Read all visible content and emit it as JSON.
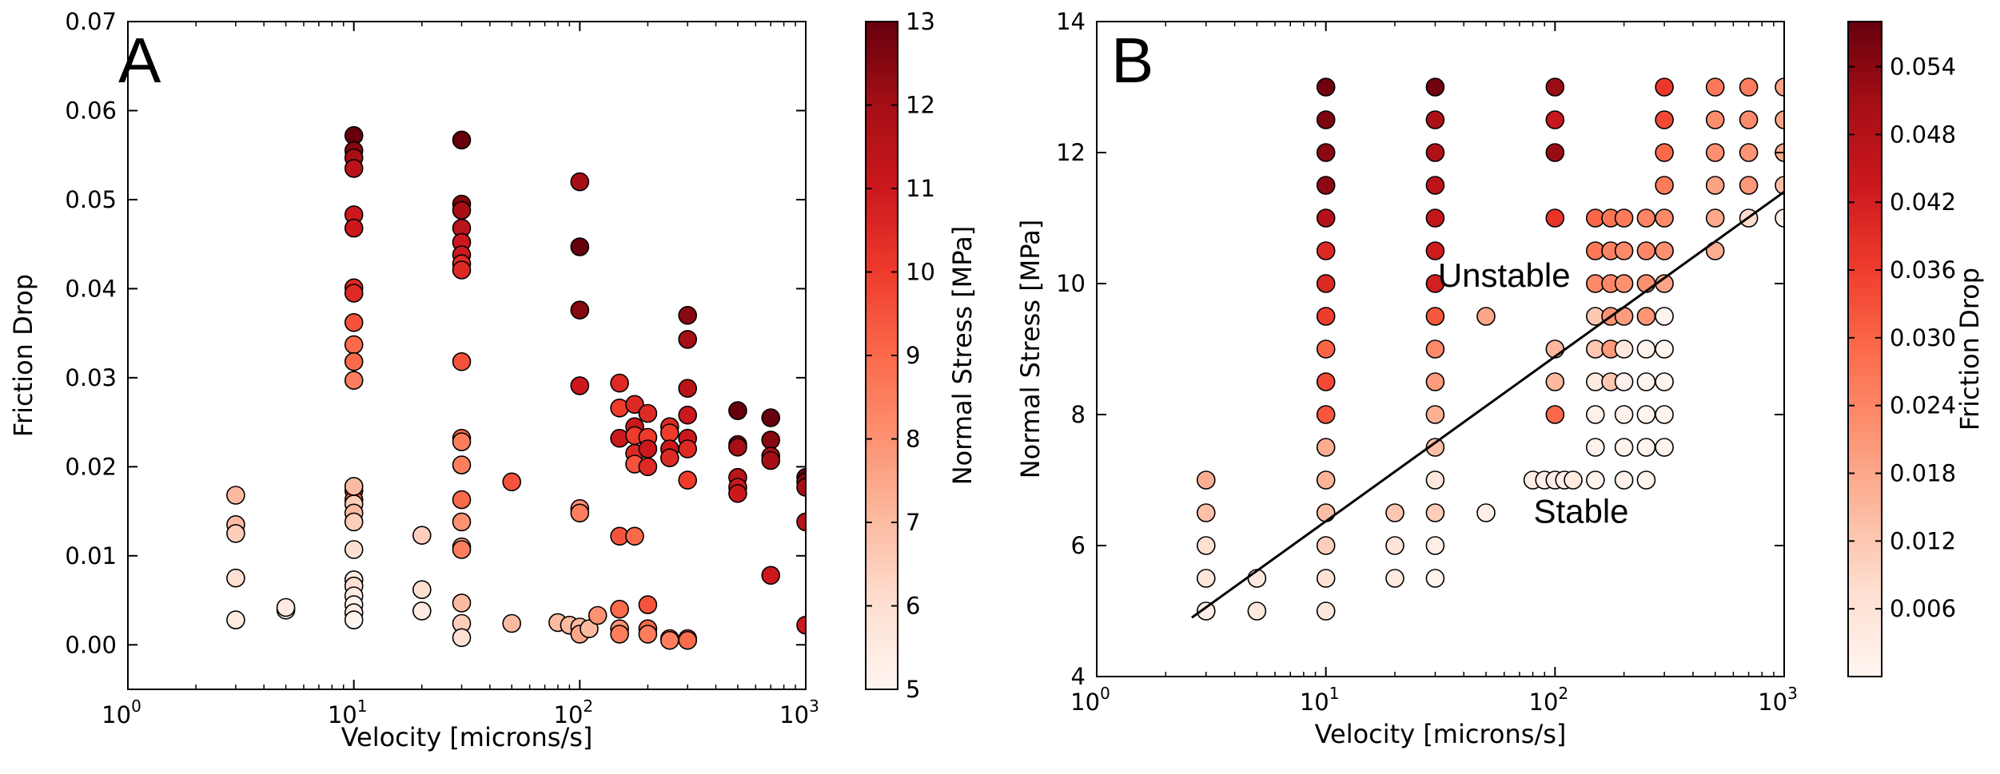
{
  "colormap": [
    "#fff5f0",
    "#fee0d2",
    "#fcbba1",
    "#fc9272",
    "#fb6a4a",
    "#ef3b2c",
    "#cb181d",
    "#a50f15",
    "#67000d"
  ],
  "chart_data": [
    {
      "type": "scatter",
      "panel_label": "A",
      "xlabel": "Velocity [microns/s]",
      "ylabel": "Friction Drop",
      "xscale": "log",
      "xlim": [
        1,
        1000
      ],
      "ylim": [
        -0.005,
        0.07
      ],
      "xticks": [
        1,
        10,
        100,
        1000
      ],
      "xtick_labels": [
        {
          "base": "10",
          "exp": "0"
        },
        {
          "base": "10",
          "exp": "1"
        },
        {
          "base": "10",
          "exp": "2"
        },
        {
          "base": "10",
          "exp": "3"
        }
      ],
      "yticks": [
        0.0,
        0.01,
        0.02,
        0.03,
        0.04,
        0.05,
        0.06,
        0.07
      ],
      "ytick_labels": [
        "0.00",
        "0.01",
        "0.02",
        "0.03",
        "0.04",
        "0.05",
        "0.06",
        "0.07"
      ],
      "colorbar": {
        "label": "Normal Stress [MPa]",
        "range": [
          5,
          13
        ],
        "ticks": [
          5,
          6,
          7,
          8,
          9,
          10,
          11,
          12,
          13
        ],
        "tick_labels": [
          "5",
          "6",
          "7",
          "8",
          "9",
          "10",
          "11",
          "12",
          "13"
        ]
      },
      "points": [
        [
          3,
          0.0168,
          7
        ],
        [
          3,
          0.0135,
          7
        ],
        [
          3,
          0.0125,
          6.5
        ],
        [
          3,
          0.0075,
          6
        ],
        [
          3,
          0.0028,
          5.5
        ],
        [
          5,
          0.0039,
          5
        ],
        [
          5,
          0.0042,
          5.5
        ],
        [
          10,
          0.0572,
          13
        ],
        [
          10,
          0.0555,
          12.5
        ],
        [
          10,
          0.0547,
          12
        ],
        [
          10,
          0.0535,
          11.5
        ],
        [
          10,
          0.0483,
          11
        ],
        [
          10,
          0.0468,
          11
        ],
        [
          10,
          0.0401,
          10.5
        ],
        [
          10,
          0.0395,
          10.5
        ],
        [
          10,
          0.0362,
          9.5
        ],
        [
          10,
          0.0337,
          9
        ],
        [
          10,
          0.0318,
          9
        ],
        [
          10,
          0.0297,
          8.5
        ],
        [
          10,
          0.0173,
          10
        ],
        [
          10,
          0.0163,
          9.5
        ],
        [
          10,
          0.0178,
          7
        ],
        [
          10,
          0.0158,
          6.5
        ],
        [
          10,
          0.0148,
          7
        ],
        [
          10,
          0.0138,
          6.5
        ],
        [
          10,
          0.0107,
          6
        ],
        [
          10,
          0.0073,
          5.5
        ],
        [
          10,
          0.0066,
          6
        ],
        [
          10,
          0.0055,
          5.5
        ],
        [
          10,
          0.0045,
          5
        ],
        [
          10,
          0.0036,
          5.5
        ],
        [
          10,
          0.0028,
          5
        ],
        [
          20,
          0.0123,
          6.5
        ],
        [
          20,
          0.0062,
          6
        ],
        [
          20,
          0.0038,
          5.5
        ],
        [
          30,
          0.0567,
          13
        ],
        [
          30,
          0.0495,
          12.5
        ],
        [
          30,
          0.0488,
          12
        ],
        [
          30,
          0.0468,
          11.5
        ],
        [
          30,
          0.0452,
          11
        ],
        [
          30,
          0.0438,
          11
        ],
        [
          30,
          0.0428,
          10.5
        ],
        [
          30,
          0.0421,
          10.5
        ],
        [
          30,
          0.0318,
          9.5
        ],
        [
          30,
          0.0232,
          9
        ],
        [
          30,
          0.0228,
          8.5
        ],
        [
          30,
          0.0202,
          8.5
        ],
        [
          30,
          0.0163,
          9
        ],
        [
          30,
          0.0138,
          8
        ],
        [
          30,
          0.011,
          7.5
        ],
        [
          30,
          0.0107,
          8.5
        ],
        [
          30,
          0.0047,
          7
        ],
        [
          30,
          0.0024,
          6.5
        ],
        [
          30,
          0.0008,
          6
        ],
        [
          50,
          0.0183,
          9.5
        ],
        [
          50,
          0.0024,
          7
        ],
        [
          80,
          0.0025,
          7
        ],
        [
          90,
          0.0022,
          7
        ],
        [
          100,
          0.052,
          12
        ],
        [
          100,
          0.0447,
          13
        ],
        [
          100,
          0.0376,
          12.5
        ],
        [
          100,
          0.0291,
          11
        ],
        [
          100,
          0.0153,
          8
        ],
        [
          100,
          0.0148,
          8.5
        ],
        [
          100,
          0.002,
          7
        ],
        [
          100,
          0.0012,
          7.5
        ],
        [
          110,
          0.0018,
          7
        ],
        [
          120,
          0.0033,
          8
        ],
        [
          150,
          0.0294,
          10.5
        ],
        [
          150,
          0.0266,
          10
        ],
        [
          150,
          0.0232,
          11
        ],
        [
          150,
          0.0122,
          9.5
        ],
        [
          150,
          0.004,
          9
        ],
        [
          150,
          0.0018,
          8
        ],
        [
          150,
          0.0012,
          8.5
        ],
        [
          175,
          0.027,
          10.5
        ],
        [
          175,
          0.0245,
          11
        ],
        [
          175,
          0.0235,
          10
        ],
        [
          175,
          0.0215,
          10.5
        ],
        [
          175,
          0.0203,
          9.5
        ],
        [
          175,
          0.0122,
          9
        ],
        [
          200,
          0.026,
          10.5
        ],
        [
          200,
          0.0233,
          10
        ],
        [
          200,
          0.022,
          11
        ],
        [
          200,
          0.02,
          10.5
        ],
        [
          200,
          0.0045,
          9.5
        ],
        [
          200,
          0.0018,
          9
        ],
        [
          200,
          0.0012,
          8.5
        ],
        [
          250,
          0.0245,
          10.5
        ],
        [
          250,
          0.0238,
          10
        ],
        [
          250,
          0.022,
          11
        ],
        [
          250,
          0.021,
          10.5
        ],
        [
          250,
          0.0007,
          9
        ],
        [
          250,
          0.0005,
          8.5
        ],
        [
          300,
          0.037,
          12.5
        ],
        [
          300,
          0.0343,
          12
        ],
        [
          300,
          0.0288,
          11.5
        ],
        [
          300,
          0.0258,
          11
        ],
        [
          300,
          0.0232,
          11
        ],
        [
          300,
          0.022,
          10.5
        ],
        [
          300,
          0.0185,
          10
        ],
        [
          300,
          0.0007,
          9.5
        ],
        [
          300,
          0.0005,
          9
        ],
        [
          500,
          0.0263,
          13
        ],
        [
          500,
          0.0225,
          12.5
        ],
        [
          500,
          0.0222,
          12
        ],
        [
          500,
          0.0188,
          11.5
        ],
        [
          500,
          0.0177,
          11
        ],
        [
          500,
          0.017,
          11
        ],
        [
          700,
          0.0255,
          13
        ],
        [
          700,
          0.023,
          12.5
        ],
        [
          700,
          0.0212,
          12
        ],
        [
          700,
          0.0207,
          12
        ],
        [
          700,
          0.0078,
          11
        ],
        [
          1000,
          0.0188,
          13
        ],
        [
          1000,
          0.0183,
          12.5
        ],
        [
          1000,
          0.0177,
          12
        ],
        [
          1000,
          0.0138,
          11.5
        ],
        [
          1000,
          0.0022,
          11
        ]
      ]
    },
    {
      "type": "scatter",
      "panel_label": "B",
      "xlabel": "Velocity [microns/s]",
      "ylabel": "Normal Stress [MPa]",
      "xscale": "log",
      "xlim": [
        1,
        1000
      ],
      "ylim": [
        4,
        14
      ],
      "xticks": [
        1,
        10,
        100,
        1000
      ],
      "xtick_labels": [
        {
          "base": "10",
          "exp": "0"
        },
        {
          "base": "10",
          "exp": "1"
        },
        {
          "base": "10",
          "exp": "2"
        },
        {
          "base": "10",
          "exp": "3"
        }
      ],
      "yticks": [
        4,
        6,
        8,
        10,
        12,
        14
      ],
      "ytick_labels": [
        "4",
        "6",
        "8",
        "10",
        "12",
        "14"
      ],
      "colorbar": {
        "label": "Friction Drop",
        "range": [
          0,
          0.058
        ],
        "ticks": [
          0.006,
          0.012,
          0.018,
          0.024,
          0.03,
          0.036,
          0.042,
          0.048,
          0.054
        ],
        "tick_labels": [
          "0.006",
          "0.012",
          "0.018",
          "0.024",
          "0.030",
          "0.036",
          "0.042",
          "0.048",
          "0.054"
        ]
      },
      "annotations": [
        {
          "text": "Unstable",
          "x": 60,
          "y": 9.95
        },
        {
          "text": "Stable",
          "x": 130,
          "y": 6.35
        }
      ],
      "boundary_line": {
        "x": [
          2.6,
          1200
        ],
        "y": [
          4.9,
          11.4
        ]
      },
      "points": [
        [
          3,
          7,
          0.0168
        ],
        [
          3,
          6.5,
          0.0135
        ],
        [
          3,
          6,
          0.0075
        ],
        [
          3,
          5.5,
          0.005
        ],
        [
          3,
          5,
          0.003
        ],
        [
          5,
          5.5,
          0.004
        ],
        [
          5,
          5,
          0.004
        ],
        [
          10,
          13,
          0.057
        ],
        [
          10,
          12.5,
          0.0555
        ],
        [
          10,
          12,
          0.054
        ],
        [
          10,
          11.5,
          0.0535
        ],
        [
          10,
          11,
          0.048
        ],
        [
          10,
          10.5,
          0.04
        ],
        [
          10,
          10,
          0.04
        ],
        [
          10,
          9.5,
          0.036
        ],
        [
          10,
          9,
          0.03
        ],
        [
          10,
          8.5,
          0.034
        ],
        [
          10,
          8,
          0.032
        ],
        [
          10,
          7.5,
          0.017
        ],
        [
          10,
          7,
          0.0158
        ],
        [
          10,
          6.5,
          0.0138
        ],
        [
          10,
          6,
          0.0107
        ],
        [
          10,
          5.5,
          0.0066
        ],
        [
          10,
          5,
          0.0045
        ],
        [
          20,
          6.5,
          0.0123
        ],
        [
          20,
          6,
          0.0062
        ],
        [
          20,
          5.5,
          0.0038
        ],
        [
          30,
          13,
          0.0567
        ],
        [
          30,
          12.5,
          0.0495
        ],
        [
          30,
          12,
          0.0488
        ],
        [
          30,
          11.5,
          0.0468
        ],
        [
          30,
          11,
          0.0452
        ],
        [
          30,
          10.5,
          0.0428
        ],
        [
          30,
          10,
          0.0421
        ],
        [
          30,
          9.5,
          0.0318
        ],
        [
          30,
          9,
          0.0232
        ],
        [
          30,
          8.5,
          0.0202
        ],
        [
          30,
          8,
          0.0163
        ],
        [
          30,
          7.5,
          0.0138
        ],
        [
          30,
          7,
          0.0047
        ],
        [
          30,
          6.5,
          0.011
        ],
        [
          30,
          6,
          0.0024
        ],
        [
          30,
          5.5,
          0.0008
        ],
        [
          50,
          9.5,
          0.0183
        ],
        [
          50,
          6.5,
          0.0024
        ],
        [
          80,
          7,
          0.0025
        ],
        [
          90,
          7,
          0.0022
        ],
        [
          100,
          7,
          0.002
        ],
        [
          110,
          7,
          0.0018
        ],
        [
          120,
          7,
          0.0033
        ],
        [
          100,
          13,
          0.052
        ],
        [
          100,
          12.5,
          0.0447
        ],
        [
          100,
          12,
          0.052
        ],
        [
          100,
          11,
          0.0376
        ],
        [
          100,
          9,
          0.0153
        ],
        [
          100,
          8.5,
          0.0148
        ],
        [
          100,
          8,
          0.0291
        ],
        [
          150,
          11,
          0.0294
        ],
        [
          150,
          10.5,
          0.0266
        ],
        [
          150,
          10,
          0.0232
        ],
        [
          150,
          9.5,
          0.0122
        ],
        [
          150,
          9,
          0.0122
        ],
        [
          150,
          8.5,
          0.004
        ],
        [
          150,
          8,
          0.0018
        ],
        [
          150,
          7.5,
          0.0012
        ],
        [
          150,
          7,
          0.0012
        ],
        [
          175,
          11,
          0.027
        ],
        [
          175,
          10.5,
          0.0245
        ],
        [
          175,
          10,
          0.0235
        ],
        [
          175,
          9.5,
          0.0215
        ],
        [
          175,
          9,
          0.0203
        ],
        [
          175,
          8.5,
          0.0122
        ],
        [
          200,
          11,
          0.026
        ],
        [
          200,
          10.5,
          0.0233
        ],
        [
          200,
          10,
          0.022
        ],
        [
          200,
          9.5,
          0.02
        ],
        [
          200,
          9,
          0.0045
        ],
        [
          200,
          8.5,
          0.0018
        ],
        [
          200,
          8,
          0.0012
        ],
        [
          200,
          7.5,
          0.0012
        ],
        [
          200,
          7,
          0.0012
        ],
        [
          250,
          11,
          0.0245
        ],
        [
          250,
          10.5,
          0.0238
        ],
        [
          250,
          10,
          0.022
        ],
        [
          250,
          9.5,
          0.021
        ],
        [
          250,
          9,
          0.0007
        ],
        [
          250,
          8.5,
          0.0005
        ],
        [
          250,
          8,
          0.0005
        ],
        [
          250,
          7.5,
          0.0005
        ],
        [
          250,
          7,
          0.0005
        ],
        [
          300,
          13,
          0.037
        ],
        [
          300,
          12.5,
          0.0343
        ],
        [
          300,
          12,
          0.0288
        ],
        [
          300,
          11.5,
          0.0258
        ],
        [
          300,
          11,
          0.0232
        ],
        [
          300,
          10.5,
          0.022
        ],
        [
          300,
          10,
          0.0185
        ],
        [
          300,
          9.5,
          0.0007
        ],
        [
          300,
          9,
          0.0005
        ],
        [
          300,
          8.5,
          0.0005
        ],
        [
          300,
          8,
          0.0005
        ],
        [
          300,
          7.5,
          0.0005
        ],
        [
          500,
          13,
          0.0263
        ],
        [
          500,
          12.5,
          0.0225
        ],
        [
          500,
          12,
          0.0222
        ],
        [
          500,
          11.5,
          0.0188
        ],
        [
          500,
          11,
          0.0177
        ],
        [
          500,
          10.5,
          0.017
        ],
        [
          700,
          13,
          0.0255
        ],
        [
          700,
          12.5,
          0.023
        ],
        [
          700,
          12,
          0.0212
        ],
        [
          700,
          11.5,
          0.0207
        ],
        [
          700,
          11,
          0.0078
        ],
        [
          1000,
          13,
          0.0188
        ],
        [
          1000,
          12.5,
          0.0183
        ],
        [
          1000,
          12,
          0.0177
        ],
        [
          1000,
          11.5,
          0.0138
        ],
        [
          1000,
          11,
          0.0022
        ]
      ]
    }
  ]
}
